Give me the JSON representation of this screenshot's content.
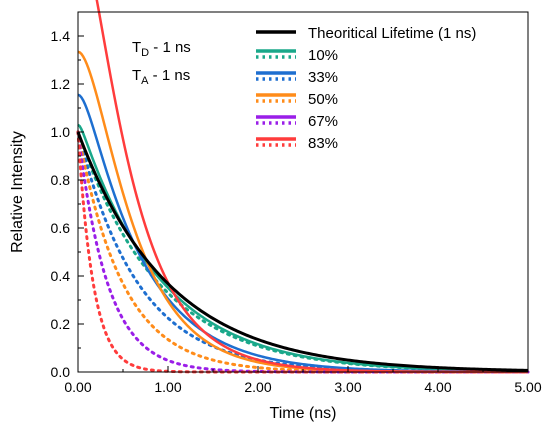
{
  "chart_data": {
    "type": "line",
    "xlabel": "Time (ns)",
    "ylabel": "Relative Intensity",
    "xlim": [
      0,
      5
    ],
    "ylim": [
      0,
      1.5
    ],
    "x_ticks": [
      "0.00",
      "1.00",
      "2.00",
      "3.00",
      "4.00",
      "5.00"
    ],
    "y_ticks": [
      "0.0",
      "0.2",
      "0.4",
      "0.6",
      "0.8",
      "1.0",
      "1.2",
      "1.4"
    ],
    "annotations": [
      {
        "main": "T",
        "sub": "D",
        "rest": " - 1 ns"
      },
      {
        "main": "T",
        "sub": "A",
        "rest": " - 1 ns"
      }
    ],
    "legend_position": "top-right",
    "reference": {
      "name": "Theoritical Lifetime (1 ns)",
      "color": "#000000",
      "tau": 1.0
    },
    "series": [
      {
        "name": "10%",
        "color": "#1aa88a",
        "tau_decay": 0.9,
        "tau_rise": 0.03,
        "amp": 1.03,
        "rise_fraction": 0.1
      },
      {
        "name": "33%",
        "color": "#1e6fd0",
        "tau_decay": 0.67,
        "tau_rise": 0.1,
        "amp": 1.155,
        "rise_fraction": 0.33
      },
      {
        "name": "50%",
        "color": "#ff8c1a",
        "tau_decay": 0.5,
        "tau_rise": 0.2,
        "amp": 1.334,
        "rise_fraction": 0.5
      },
      {
        "name": "67%",
        "color": "#9a1ee8",
        "tau_decay": 0.33,
        "tau_rise": 0.33,
        "amp": 1.5,
        "rise_fraction": 0.67
      },
      {
        "name": "83%",
        "color": "#ff3c3c",
        "tau_decay": 0.17,
        "tau_rise": 0.5,
        "amp": 1.83,
        "rise_fraction": 0.83
      }
    ]
  }
}
